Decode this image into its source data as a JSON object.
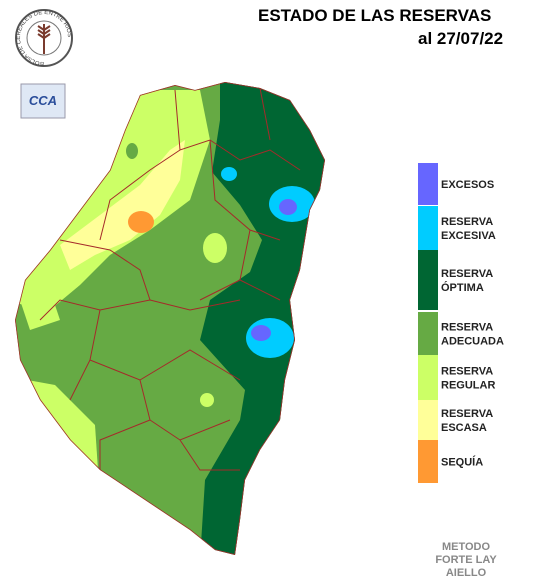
{
  "header": {
    "title": "ESTADO DE LAS RESERVAS",
    "date": "al 27/07/22"
  },
  "logo": {
    "text": "BOLSA DE CEREALES DE ENTRE RIOS",
    "badge": "CCA"
  },
  "legend": [
    {
      "label": [
        "EXCESOS"
      ],
      "color": "#6666ff"
    },
    {
      "label": [
        "RESERVA",
        "EXCESIVA"
      ],
      "color": "#00ccff"
    },
    {
      "label": [
        "RESERVA",
        "ÓPTIMA"
      ],
      "color": "#006633"
    },
    {
      "label": [
        "RESERVA",
        "ADECUADA"
      ],
      "color": "#66aa44"
    },
    {
      "label": [
        "RESERVA",
        "REGULAR"
      ],
      "color": "#ccff66"
    },
    {
      "label": [
        "RESERVA",
        "ESCASA"
      ],
      "color": "#ffff99"
    },
    {
      "label": [
        "SEQUÍA"
      ],
      "color": "#ff9933"
    }
  ],
  "method": [
    "METODO",
    "FORTE LAY",
    "AIELLO"
  ]
}
